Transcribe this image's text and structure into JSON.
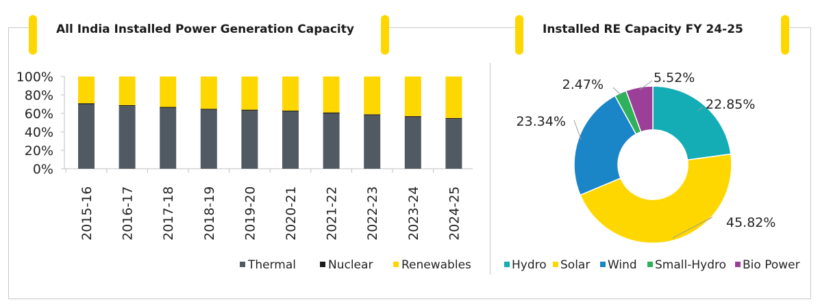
{
  "left_title": "All India Installed Power Generation Capacity",
  "right_title": "Installed RE Capacity FY 24-25",
  "colors": {
    "thermal": "#515a63",
    "nuclear": "#1a1a1a",
    "renewables": "#ffd700",
    "hydro": "#14adb5",
    "solar": "#ffd700",
    "wind": "#1a85c7",
    "small_hydro": "#2fb05a",
    "bio": "#9c3f98",
    "accent": "#ffd700"
  },
  "chart_data": [
    {
      "type": "bar",
      "stacked": true,
      "title": "All India Installed Power Generation Capacity",
      "categories": [
        "2015-16",
        "2016-17",
        "2017-18",
        "2018-19",
        "2019-20",
        "2020-21",
        "2021-22",
        "2022-23",
        "2023-24",
        "2024-25"
      ],
      "series": [
        {
          "name": "Thermal",
          "values": [
            70,
            68,
            66,
            64,
            63,
            62,
            60,
            58,
            56,
            54
          ]
        },
        {
          "name": "Nuclear",
          "values": [
            1,
            1,
            1,
            1,
            1,
            1,
            1,
            1,
            1,
            1
          ]
        },
        {
          "name": "Renewables",
          "values": [
            29,
            31,
            33,
            35,
            36,
            37,
            39,
            41,
            43,
            45
          ]
        }
      ],
      "yticks": [
        "100%",
        "80%",
        "60%",
        "40%",
        "20%",
        "0%"
      ],
      "ylim": [
        0,
        100
      ],
      "legend_position": "bottom-right"
    },
    {
      "type": "pie",
      "donut": true,
      "title": "Installed RE Capacity FY 24-25",
      "slices": [
        {
          "name": "Hydro",
          "value": 22.85,
          "label": "22.85%"
        },
        {
          "name": "Solar",
          "value": 45.82,
          "label": "45.82%"
        },
        {
          "name": "Wind",
          "value": 23.34,
          "label": "23.34%"
        },
        {
          "name": "Small-Hydro",
          "value": 2.47,
          "label": "2.47%"
        },
        {
          "name": "Bio Power",
          "value": 5.52,
          "label": "5.52%"
        }
      ],
      "legend_position": "bottom"
    }
  ]
}
